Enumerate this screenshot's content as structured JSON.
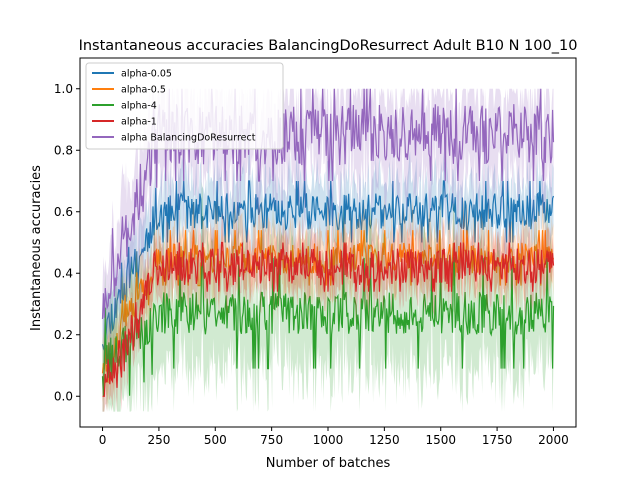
{
  "chart_data": {
    "type": "line",
    "title": "Instantaneous accuracies BalancingDoResurrect Adult B10 N 100_10",
    "xlabel": "Number of batches",
    "ylabel": "Instantaneous accuracies",
    "xlim": [
      -100,
      2100
    ],
    "ylim": [
      -0.1,
      1.1
    ],
    "xticks": [
      "0",
      "250",
      "500",
      "750",
      "1000",
      "1250",
      "1500",
      "1750",
      "2000"
    ],
    "yticks": [
      "0.0",
      "0.2",
      "0.4",
      "0.6",
      "0.8",
      "1.0"
    ],
    "grid": false,
    "legend_position": "upper-left",
    "series": [
      {
        "name": "alpha-0.05",
        "color": "#1f77b4",
        "center": 0.6,
        "spread": 0.06,
        "band": 0.1,
        "start": 0.2,
        "seed": 11
      },
      {
        "name": "alpha-0.5",
        "color": "#ff7f0e",
        "center": 0.45,
        "spread": 0.05,
        "band": 0.09,
        "start": 0.1,
        "seed": 23
      },
      {
        "name": "alpha-4",
        "color": "#2ca02c",
        "center": 0.27,
        "spread": 0.07,
        "band": 0.18,
        "start": 0.1,
        "seed": 37
      },
      {
        "name": "alpha-1",
        "color": "#d62728",
        "center": 0.42,
        "spread": 0.06,
        "band": 0.08,
        "start": 0.0,
        "seed": 41
      },
      {
        "name": "alpha BalancingDoResurrect",
        "color": "#9467bd",
        "center": 0.85,
        "spread": 0.1,
        "band": 0.15,
        "start": 0.3,
        "seed": 53
      }
    ],
    "batches": 2000
  }
}
